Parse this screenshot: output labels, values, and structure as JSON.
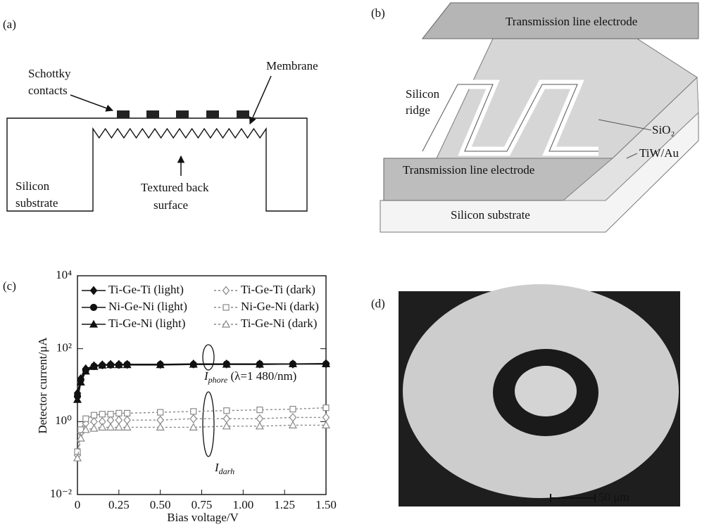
{
  "panel_a": {
    "label": "(a)",
    "schottky": [
      "Schottky",
      "contacts"
    ],
    "membrane": "Membrane",
    "substrate": [
      "Silicon",
      "substrate"
    ],
    "textured": [
      "Textured back",
      "surface"
    ]
  },
  "panel_b": {
    "label": "(b)",
    "top_electrode": "Transmission line electrode",
    "ridge": [
      "Silicon",
      "ridge"
    ],
    "sio2": "SiO₂",
    "tiwau": "TiW/Au",
    "bottom_electrode": "Transmission line electrode",
    "substrate": "Silicon substrate"
  },
  "chart_data": {
    "type": "line",
    "panel_label": "(c)",
    "x_label": "Bias voltage/V",
    "y_label": "Detector current/μA",
    "log_y": true,
    "legend": "top-left",
    "xlim": [
      0,
      1.5
    ],
    "ylim": [
      0.01,
      10000
    ],
    "xticks": [
      0,
      0.25,
      {
        "value": 0.5,
        "label": "0.50"
      },
      0.75,
      {
        "value": 1,
        "label": "1.00"
      },
      1.25,
      {
        "value": 1.5,
        "label": "1.50"
      }
    ],
    "yticks": [
      {
        "value": 0.01,
        "label": "10⁻²"
      },
      {
        "value": 1,
        "label": "10⁰"
      },
      {
        "value": 100,
        "label": "10²"
      },
      {
        "value": 10000,
        "label": "10⁴"
      }
    ],
    "x": [
      0,
      0.02,
      0.05,
      0.1,
      0.15,
      0.2,
      0.25,
      0.3,
      0.5,
      0.7,
      0.9,
      1.1,
      1.3,
      1.5
    ],
    "series": [
      {
        "name": "Ti-Ge-Ti (light)",
        "color": "#111111",
        "marker": "diamond",
        "line_style": "solid",
        "filled": true,
        "values": [
          6,
          15,
          28,
          34,
          36,
          37,
          37,
          37,
          37,
          38,
          38,
          38,
          38,
          39
        ]
      },
      {
        "name": "Ni-Ge-Ni (light)",
        "color": "#111111",
        "marker": "circle",
        "line_style": "solid",
        "filled": true,
        "values": [
          5,
          14,
          26,
          33,
          35,
          36,
          36,
          37,
          37,
          37,
          38,
          38,
          38,
          38
        ]
      },
      {
        "name": "Ti-Ge-Ni (light)",
        "color": "#111111",
        "marker": "triangle",
        "line_style": "solid",
        "filled": true,
        "values": [
          4,
          12,
          24,
          32,
          35,
          36,
          36,
          36,
          36,
          37,
          37,
          37,
          38,
          38
        ]
      },
      {
        "name": "Ti-Ge-Ti (dark)",
        "color": "#888888",
        "marker": "diamond",
        "line_style": "dotted",
        "filled": false,
        "values": [
          0.12,
          0.5,
          0.9,
          1.0,
          1.0,
          1.1,
          1.1,
          1.1,
          1.1,
          1.2,
          1.2,
          1.2,
          1.3,
          1.3
        ]
      },
      {
        "name": "Ni-Ge-Ni (dark)",
        "color": "#888888",
        "marker": "square",
        "line_style": "dotted",
        "filled": false,
        "values": [
          0.15,
          0.6,
          1.2,
          1.5,
          1.6,
          1.6,
          1.7,
          1.7,
          1.8,
          1.9,
          2.0,
          2.1,
          2.2,
          2.4
        ]
      },
      {
        "name": "Ti-Ge-Ni (dark)",
        "color": "#888888",
        "marker": "triangle",
        "line_style": "dotted",
        "filled": false,
        "values": [
          0.1,
          0.35,
          0.6,
          0.65,
          0.7,
          0.7,
          0.7,
          0.7,
          0.7,
          0.7,
          0.75,
          0.75,
          0.8,
          0.8
        ]
      }
    ],
    "annotations": [
      {
        "symbol": "I",
        "subscript": "phore",
        "text": " (λ=1 480/nm)"
      },
      {
        "symbol": "I",
        "subscript": "darh"
      }
    ]
  },
  "panel_d": {
    "label": "(d)",
    "scale_bar": "50 μm"
  }
}
